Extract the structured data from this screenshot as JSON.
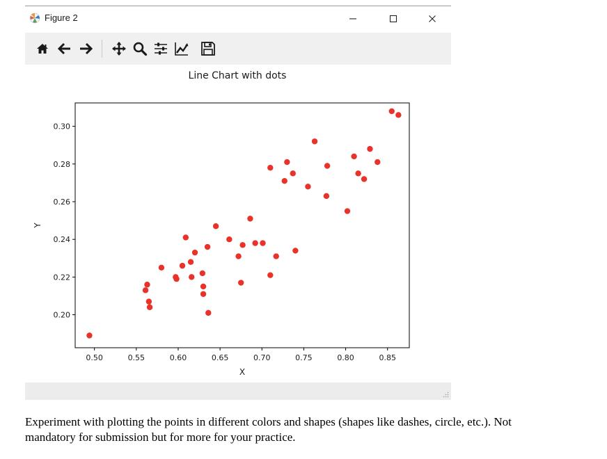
{
  "window": {
    "title": "Figure 2",
    "controls": {
      "minimize": "minimize",
      "maximize": "maximize",
      "close": "close"
    }
  },
  "toolbar": {
    "buttons": [
      {
        "id": "home",
        "icon": "home-icon"
      },
      {
        "id": "back",
        "icon": "back-arrow-icon"
      },
      {
        "id": "forward",
        "icon": "forward-arrow-icon"
      },
      {
        "id": "pan",
        "icon": "pan-icon"
      },
      {
        "id": "zoom",
        "icon": "zoom-icon"
      },
      {
        "id": "subplots",
        "icon": "subplots-icon"
      },
      {
        "id": "axes",
        "icon": "edit-axes-icon"
      },
      {
        "id": "save",
        "icon": "save-icon"
      }
    ]
  },
  "chart_data": {
    "type": "scatter",
    "title": "Line Chart with dots",
    "xlabel": "X",
    "ylabel": "Y",
    "xlim": [
      0.477,
      0.876
    ],
    "ylim": [
      0.1825,
      0.3124
    ],
    "xticks": [
      "0.50",
      "0.55",
      "0.60",
      "0.65",
      "0.70",
      "0.75",
      "0.80",
      "0.85"
    ],
    "yticks": [
      "0.20",
      "0.22",
      "0.24",
      "0.26",
      "0.28",
      "0.30"
    ],
    "grid": false,
    "marker_color": "#e8322a",
    "points": [
      [
        0.494,
        0.189
      ],
      [
        0.561,
        0.213
      ],
      [
        0.563,
        0.216
      ],
      [
        0.565,
        0.207
      ],
      [
        0.566,
        0.204
      ],
      [
        0.58,
        0.225
      ],
      [
        0.597,
        0.22
      ],
      [
        0.598,
        0.219
      ],
      [
        0.605,
        0.226
      ],
      [
        0.609,
        0.241
      ],
      [
        0.615,
        0.228
      ],
      [
        0.616,
        0.22
      ],
      [
        0.62,
        0.233
      ],
      [
        0.629,
        0.222
      ],
      [
        0.63,
        0.215
      ],
      [
        0.63,
        0.211
      ],
      [
        0.635,
        0.236
      ],
      [
        0.636,
        0.201
      ],
      [
        0.645,
        0.247
      ],
      [
        0.661,
        0.24
      ],
      [
        0.672,
        0.231
      ],
      [
        0.675,
        0.217
      ],
      [
        0.677,
        0.237
      ],
      [
        0.686,
        0.251
      ],
      [
        0.692,
        0.238
      ],
      [
        0.701,
        0.238
      ],
      [
        0.71,
        0.221
      ],
      [
        0.71,
        0.278
      ],
      [
        0.717,
        0.231
      ],
      [
        0.727,
        0.271
      ],
      [
        0.73,
        0.281
      ],
      [
        0.737,
        0.275
      ],
      [
        0.74,
        0.234
      ],
      [
        0.755,
        0.268
      ],
      [
        0.763,
        0.292
      ],
      [
        0.777,
        0.263
      ],
      [
        0.778,
        0.279
      ],
      [
        0.802,
        0.255
      ],
      [
        0.81,
        0.284
      ],
      [
        0.815,
        0.275
      ],
      [
        0.822,
        0.272
      ],
      [
        0.829,
        0.288
      ],
      [
        0.838,
        0.281
      ],
      [
        0.855,
        0.308
      ],
      [
        0.863,
        0.306
      ]
    ]
  },
  "caption": {
    "line1": "Experiment with plotting the points in different colors and shapes (shapes like dashes, circle, etc.).  Not",
    "line2": "mandatory for submission but for more for your practice."
  }
}
